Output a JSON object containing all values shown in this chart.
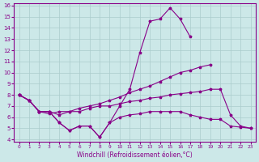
{
  "xlabel": "Windchill (Refroidissement éolien,°C)",
  "ylabel": "",
  "xlim": [
    -0.5,
    23.5
  ],
  "ylim": [
    3.8,
    16.2
  ],
  "yticks": [
    4,
    5,
    6,
    7,
    8,
    9,
    10,
    11,
    12,
    13,
    14,
    15,
    16
  ],
  "xticks": [
    0,
    1,
    2,
    3,
    4,
    5,
    6,
    7,
    8,
    9,
    10,
    11,
    12,
    13,
    14,
    15,
    16,
    17,
    18,
    19,
    20,
    21,
    22,
    23
  ],
  "background_color": "#cce8e8",
  "line_color": "#880088",
  "grid_color": "#aacccc",
  "series": [
    {
      "x": [
        0,
        1,
        2,
        3,
        4,
        5,
        6,
        7,
        8,
        9,
        10,
        11,
        12,
        13,
        14,
        15,
        16,
        17,
        18,
        19,
        20,
        21,
        22,
        23
      ],
      "y": [
        8.0,
        7.5,
        6.5,
        6.5,
        5.5,
        4.8,
        5.2,
        5.2,
        4.2,
        5.5,
        7.0,
        8.5,
        11.8,
        14.6,
        14.8,
        15.8,
        14.8,
        13.2,
        null,
        null,
        null,
        null,
        null,
        null
      ]
    },
    {
      "x": [
        0,
        1,
        2,
        3,
        4,
        5,
        6,
        7,
        8,
        9,
        10,
        11,
        12,
        13,
        14,
        15,
        16,
        17,
        18,
        19,
        20,
        21,
        22,
        23
      ],
      "y": [
        8.0,
        7.5,
        6.5,
        6.5,
        6.2,
        6.5,
        6.8,
        7.0,
        7.2,
        7.5,
        7.8,
        8.2,
        8.5,
        8.8,
        9.2,
        9.6,
        10.0,
        10.2,
        10.5,
        10.7,
        null,
        null,
        null,
        null
      ]
    },
    {
      "x": [
        0,
        1,
        2,
        3,
        4,
        5,
        6,
        7,
        8,
        9,
        10,
        11,
        12,
        13,
        14,
        15,
        16,
        17,
        18,
        19,
        20,
        21,
        22,
        23
      ],
      "y": [
        8.0,
        7.5,
        6.5,
        6.3,
        6.5,
        6.5,
        6.5,
        6.8,
        7.0,
        7.0,
        7.2,
        7.4,
        7.5,
        7.7,
        7.8,
        8.0,
        8.1,
        8.2,
        8.3,
        8.5,
        8.5,
        6.2,
        5.2,
        5.0
      ]
    },
    {
      "x": [
        0,
        1,
        2,
        3,
        4,
        5,
        6,
        7,
        8,
        9,
        10,
        11,
        12,
        13,
        14,
        15,
        16,
        17,
        18,
        19,
        20,
        21,
        22,
        23
      ],
      "y": [
        8.0,
        7.5,
        6.5,
        6.5,
        5.5,
        4.8,
        5.2,
        5.2,
        4.2,
        5.5,
        6.0,
        6.2,
        6.3,
        6.5,
        6.5,
        6.5,
        6.5,
        6.2,
        6.0,
        5.8,
        5.8,
        5.2,
        5.1,
        5.0
      ]
    }
  ]
}
